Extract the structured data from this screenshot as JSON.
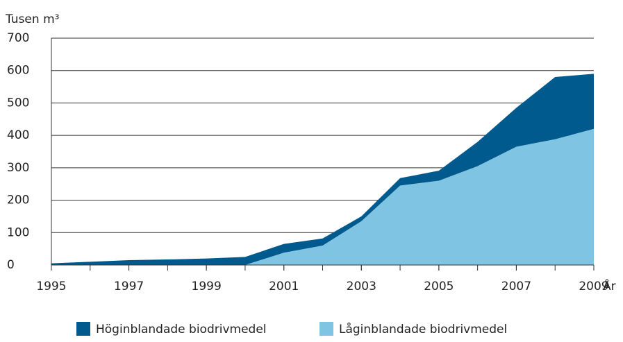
{
  "chart_data": {
    "type": "area",
    "stacked": true,
    "y_label": "Tusen m³",
    "x_label": "År",
    "x": [
      1995,
      1996,
      1997,
      1998,
      1999,
      2000,
      2001,
      2002,
      2003,
      2004,
      2005,
      2006,
      2007,
      2008,
      2009
    ],
    "series": [
      {
        "name": "Höginblandade biodrivmedel",
        "color": "#005a8e",
        "values": [
          5,
          10,
          15,
          17,
          20,
          25,
          27,
          22,
          15,
          23,
          31,
          75,
          120,
          192,
          170
        ]
      },
      {
        "name": "Låginblandade biodrivmedel",
        "color": "#7fc4e2",
        "values": [
          0,
          0,
          0,
          0,
          0,
          0,
          38,
          60,
          135,
          245,
          260,
          305,
          365,
          388,
          420
        ]
      }
    ],
    "xlim": [
      1995,
      2009
    ],
    "xticks": [
      1995,
      1997,
      1999,
      2001,
      2003,
      2005,
      2007,
      2009
    ],
    "ylim": [
      0,
      700
    ],
    "yticks": [
      0,
      100,
      200,
      300,
      400,
      500,
      600,
      700
    ],
    "grid": true
  }
}
